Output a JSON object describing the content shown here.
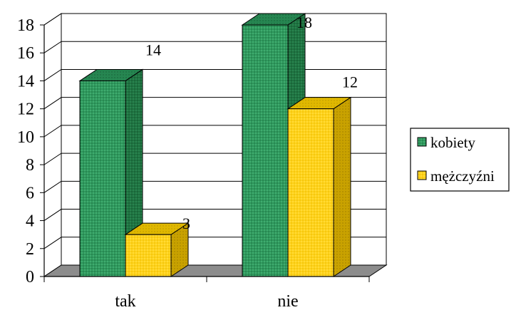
{
  "chart_data": {
    "type": "bar",
    "style": "3d-clustered-column",
    "categories": [
      "tak",
      "nie"
    ],
    "series": [
      {
        "name": "kobiety",
        "values": [
          14,
          18
        ],
        "color": "#2e8b57"
      },
      {
        "name": "mężczyźni",
        "values": [
          3,
          12
        ],
        "color": "#ffd700"
      }
    ],
    "ylim": [
      0,
      18
    ],
    "yticks": [
      0,
      2,
      4,
      6,
      8,
      10,
      12,
      14,
      16,
      18
    ],
    "grid": true,
    "legend": "right"
  }
}
